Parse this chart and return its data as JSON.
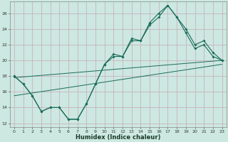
{
  "title": "",
  "xlabel": "Humidex (Indice chaleur)",
  "bg_color": "#cce8e0",
  "line_color": "#1a6b5a",
  "grid_color": "#c8a8b8",
  "xlim": [
    -0.5,
    23.5
  ],
  "ylim": [
    11.5,
    27.5
  ],
  "yticks": [
    12,
    14,
    16,
    18,
    20,
    22,
    24,
    26
  ],
  "line1_x": [
    0,
    1,
    2,
    3,
    4,
    5,
    6,
    7,
    8,
    9,
    10,
    11,
    12,
    13,
    14,
    15,
    16,
    17,
    18,
    19,
    20,
    21,
    22,
    23
  ],
  "line1_y": [
    18.0,
    17.0,
    15.5,
    13.5,
    14.0,
    14.0,
    12.5,
    12.5,
    14.5,
    17.0,
    19.5,
    20.5,
    20.5,
    22.5,
    22.5,
    24.5,
    25.5,
    27.0,
    25.5,
    23.5,
    21.5,
    22.0,
    20.5,
    20.0
  ],
  "line2_x": [
    0,
    1,
    2,
    3,
    4,
    5,
    6,
    7,
    8,
    9,
    10,
    11,
    12,
    13,
    14,
    15,
    16,
    17,
    18,
    19,
    20,
    21,
    22,
    23
  ],
  "line2_y": [
    18.0,
    17.0,
    15.5,
    13.5,
    14.0,
    14.0,
    12.5,
    12.5,
    14.5,
    17.0,
    19.5,
    20.8,
    20.5,
    22.8,
    22.5,
    24.8,
    26.0,
    27.0,
    25.5,
    24.0,
    22.0,
    22.5,
    21.0,
    20.0
  ],
  "line3_x": [
    0,
    23
  ],
  "line3_y": [
    17.8,
    20.0
  ],
  "line4_x": [
    0,
    23
  ],
  "line4_y": [
    15.5,
    19.5
  ]
}
